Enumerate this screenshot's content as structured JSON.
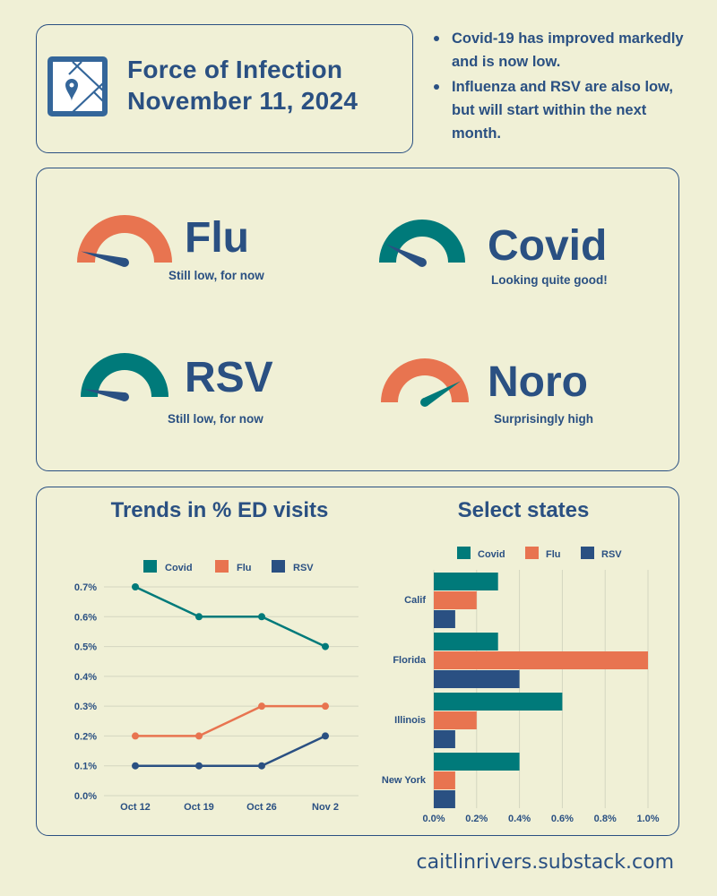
{
  "colors": {
    "background": "#f0f0d6",
    "text": "#2a5082",
    "covid": "#007a7a",
    "flu": "#e87450",
    "rsv": "#2a5082",
    "grid": "#d4d6c0"
  },
  "header": {
    "icon": "map-pin-icon",
    "title": "Force of Infection",
    "date": "November 11, 2024"
  },
  "bullets": [
    "Covid-19 has improved markedly and is now low.",
    "Influenza and RSV are also low, but will start within the next month."
  ],
  "gauges": [
    {
      "name": "Flu",
      "subtitle": "Still low, for now",
      "level": 0.08,
      "arc_color": "#e87450",
      "needle_color": "#2a5082"
    },
    {
      "name": "Covid",
      "subtitle": "Looking quite good!",
      "level": 0.15,
      "arc_color": "#007a7a",
      "needle_color": "#2a5082"
    },
    {
      "name": "RSV",
      "subtitle": "Still low, for now",
      "level": 0.06,
      "arc_color": "#007a7a",
      "needle_color": "#2a5082"
    },
    {
      "name": "Noro",
      "subtitle": "Surprisingly high",
      "level": 0.83,
      "arc_color": "#e87450",
      "needle_color": "#007a7a"
    }
  ],
  "chart_data": [
    {
      "type": "line",
      "title": "Trends in % ED visits",
      "categories": [
        "Oct 12",
        "Oct 19",
        "Oct 26",
        "Nov 2"
      ],
      "series": [
        {
          "name": "Covid",
          "values": [
            0.7,
            0.6,
            0.6,
            0.5
          ],
          "color": "#007a7a"
        },
        {
          "name": "Flu",
          "values": [
            0.2,
            0.2,
            0.3,
            0.3
          ],
          "color": "#e87450"
        },
        {
          "name": "RSV",
          "values": [
            0.1,
            0.1,
            0.1,
            0.2
          ],
          "color": "#2a5082"
        }
      ],
      "yticks": [
        "0.0%",
        "0.1%",
        "0.2%",
        "0.3%",
        "0.4%",
        "0.5%",
        "0.6%",
        "0.7%"
      ],
      "ylim": [
        0,
        0.7
      ],
      "grid": true,
      "legend": "top"
    },
    {
      "type": "bar",
      "orientation": "horizontal",
      "title": "Select states",
      "categories": [
        "Calif",
        "Florida",
        "Illinois",
        "New York"
      ],
      "series": [
        {
          "name": "Covid",
          "values": [
            0.3,
            0.3,
            0.6,
            0.4
          ],
          "color": "#007a7a"
        },
        {
          "name": "Flu",
          "values": [
            0.2,
            1.0,
            0.2,
            0.1
          ],
          "color": "#e87450"
        },
        {
          "name": "RSV",
          "values": [
            0.1,
            0.4,
            0.1,
            0.1
          ],
          "color": "#2a5082"
        }
      ],
      "xticks": [
        "0.0%",
        "0.2%",
        "0.4%",
        "0.6%",
        "0.8%",
        "1.0%"
      ],
      "xlim": [
        0,
        1.0
      ],
      "grid": true,
      "legend": "top"
    }
  ],
  "footer": "caitlinrivers.substack.com"
}
